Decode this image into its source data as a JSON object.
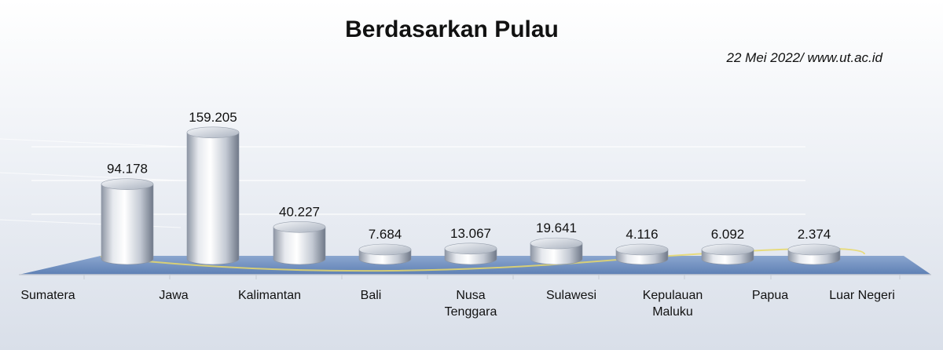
{
  "chart_data": {
    "type": "bar",
    "title": "Berdasarkan Pulau",
    "subtitle": "22  Mei  2022/ www.ut.ac.id",
    "categories": [
      "Sumatera",
      "Jawa",
      "Kalimantan",
      "Bali",
      "Nusa Tenggara",
      "Sulawesi",
      "Kepulauan Maluku",
      "Papua",
      "Luar Negeri"
    ],
    "values": [
      94178,
      159205,
      40227,
      7684,
      13067,
      19641,
      4116,
      6092,
      2374
    ],
    "data_labels": [
      "94.178",
      "159.205",
      "40.227",
      "7.684",
      "13.067",
      "19.641",
      "4.116",
      "6.092",
      "2.374"
    ],
    "xlabel": "",
    "ylabel": "",
    "ylim": [
      0,
      160000
    ],
    "grid": true,
    "legend": "none",
    "style": "3d-cylinder",
    "colors": {
      "bar": "#c6ccd6",
      "floor": "#6d8fc0",
      "floor_line": "#e8d86a"
    }
  }
}
